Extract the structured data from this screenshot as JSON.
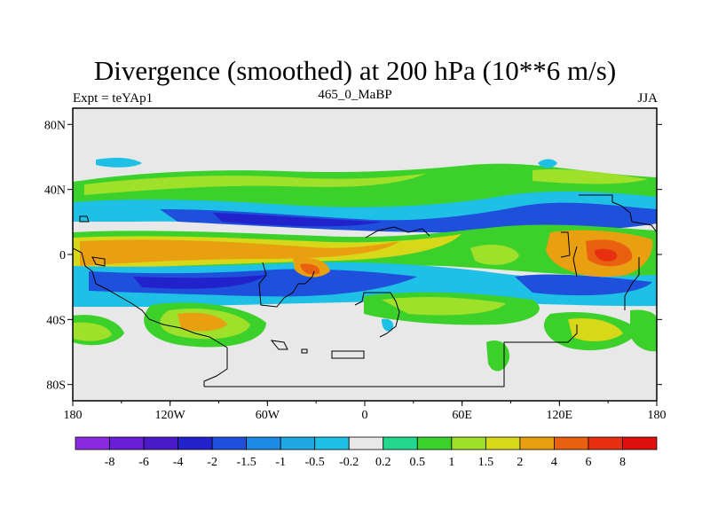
{
  "title": "Divergence (smoothed) at 200 hPa (10**6 m/s)",
  "left_label": "Expt = teYAp1",
  "center_label": "465_0_MaBP",
  "right_label": "JJA",
  "lat_ticks": [
    "80N",
    "40N",
    "0",
    "40S",
    "80S"
  ],
  "lon_ticks": [
    "180",
    "120W",
    "60W",
    "0",
    "60E",
    "120E",
    "180"
  ],
  "colorbar": {
    "labels": [
      "-8",
      "-6",
      "-4",
      "-2",
      "-1.5",
      "-1",
      "-0.5",
      "-0.2",
      "0.2",
      "0.5",
      "1",
      "1.5",
      "2",
      "4",
      "6",
      "8"
    ],
    "colors": [
      "#8a2be2",
      "#6a1fd6",
      "#4a1ac8",
      "#2222cc",
      "#1e50dc",
      "#1e8ae6",
      "#1ea8e6",
      "#1ec0e6",
      "#e8e8e8",
      "#22d890",
      "#3cd02a",
      "#9ee02a",
      "#d8d81a",
      "#e8a010",
      "#e86010",
      "#e83010",
      "#e01010"
    ]
  },
  "colors": {
    "background_field": "#e8e8e8",
    "coastline": "#000000"
  }
}
